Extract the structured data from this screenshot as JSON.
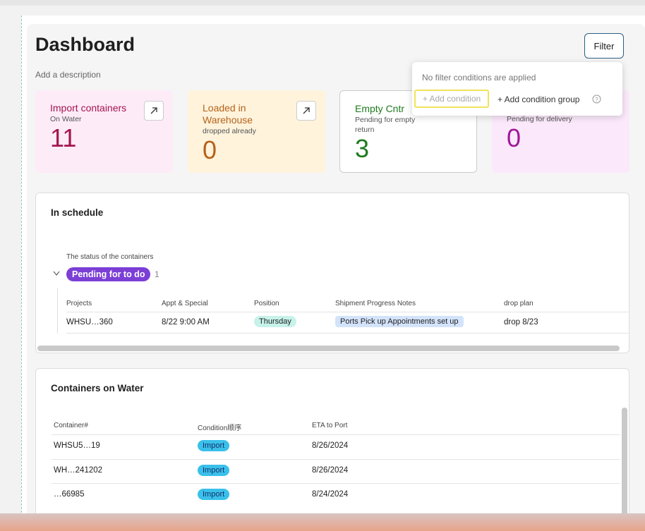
{
  "header": {
    "title": "Dashboard",
    "description": "Add a description",
    "filter_button": "Filter"
  },
  "filter_popup": {
    "message": "No filter conditions are applied",
    "add_condition": "+ Add condition",
    "add_condition_group": "+ Add condition group"
  },
  "cards": [
    {
      "title": "Import containers",
      "subtitle": "On Water",
      "value": "11"
    },
    {
      "title": "Loaded in Warehouse",
      "subtitle": "dropped already",
      "value": "0"
    },
    {
      "title": "Empty Cntr",
      "subtitle": "Pending for empty return",
      "value": "3"
    },
    {
      "subtitle": "Pending for delivery",
      "value": "0"
    }
  ],
  "schedule": {
    "title": "In schedule",
    "group_field": "The status of the containers",
    "group": "Pending for to do",
    "group_count": "1",
    "columns": [
      "Projects",
      "Appt & Special",
      "Position",
      "Shipment Progress Notes",
      "drop plan"
    ],
    "rows": [
      [
        "WHSU…360",
        "8/22 9:00 AM",
        "Thursday",
        "Ports Pick up Appointments set up",
        "drop 8/23"
      ]
    ]
  },
  "water": {
    "title": "Containers on Water",
    "columns": [
      "Container#",
      "Condition顺序",
      "ETA to Port"
    ],
    "rows": [
      [
        "WHSU5…19",
        "Import",
        "8/26/2024"
      ],
      [
        "WH…241202",
        "Import",
        "8/26/2024"
      ],
      [
        "…66985",
        "Import",
        "8/24/2024"
      ]
    ]
  }
}
